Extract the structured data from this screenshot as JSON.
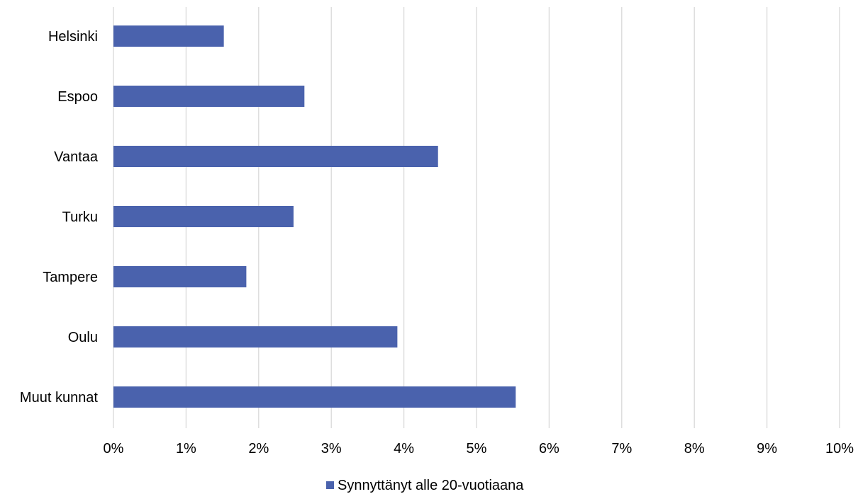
{
  "chart_data": {
    "type": "bar",
    "orientation": "horizontal",
    "categories": [
      "Helsinki",
      "Espoo",
      "Vantaa",
      "Turku",
      "Tampere",
      "Oulu",
      "Muut kunnat"
    ],
    "series": [
      {
        "name": "Synnyttänyt alle 20-vuotiaana",
        "values": [
          1.52,
          2.63,
          4.47,
          2.48,
          1.83,
          3.91,
          5.54
        ],
        "color": "#4a62ad"
      }
    ],
    "xlim": [
      0,
      10
    ],
    "x_ticks": [
      "0%",
      "1%",
      "2%",
      "3%",
      "4%",
      "5%",
      "6%",
      "7%",
      "8%",
      "9%",
      "10%"
    ],
    "grid": true,
    "legend_position": "bottom"
  }
}
